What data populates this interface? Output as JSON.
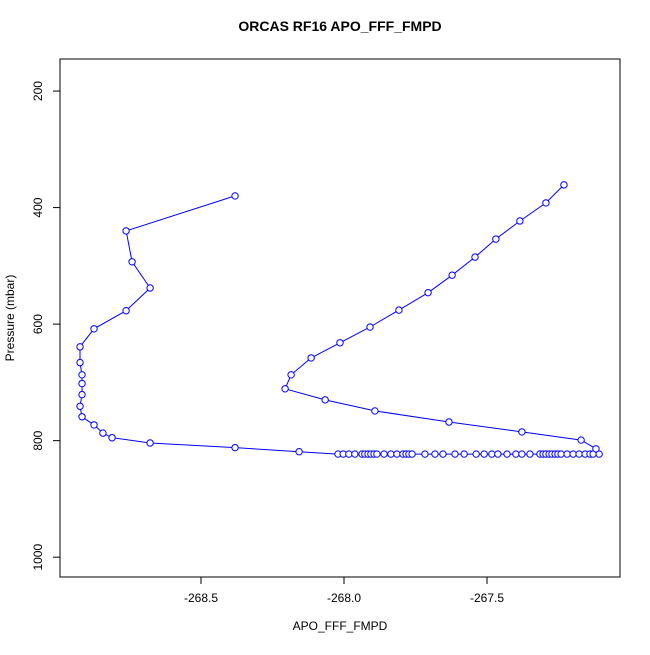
{
  "chart_data": {
    "type": "line",
    "title": "ORCAS RF16 APO_FFF_FMPD",
    "x_label": "APO_FFF_FMPD",
    "y_label": "Pressure (mbar)",
    "color": "#0000ff",
    "markers": true,
    "x": [
      -268.381,
      -268.762,
      -268.741,
      -268.678,
      -268.762,
      -268.874,
      -268.923,
      -268.923,
      -268.916,
      -268.916,
      -268.916,
      -268.923,
      -268.916,
      -268.874,
      -268.843,
      -268.811,
      -268.678,
      -268.381,
      -268.157,
      -268.021,
      -268.003,
      -267.983,
      -267.962,
      -267.937,
      -267.927,
      -267.916,
      -267.906,
      -267.895,
      -267.885,
      -267.86,
      -267.836,
      -267.815,
      -267.794,
      -267.783,
      -267.773,
      -267.762,
      -267.717,
      -267.682,
      -267.654,
      -267.612,
      -267.58,
      -267.538,
      -267.51,
      -267.483,
      -267.462,
      -267.43,
      -267.399,
      -267.378,
      -267.35,
      -267.315,
      -267.304,
      -267.294,
      -267.283,
      -267.273,
      -267.262,
      -267.252,
      -267.241,
      -267.22,
      -267.199,
      -267.178,
      -267.157,
      -267.14,
      -267.129,
      -267.108,
      -267.119,
      -267.171,
      -267.378,
      -267.633,
      -267.892,
      -268.066,
      -268.206,
      -268.185,
      -268.115,
      -268.014,
      -267.909,
      -267.808,
      -267.706,
      -267.622,
      -267.542,
      -267.469,
      -267.385,
      -267.294,
      -267.231
    ],
    "values": [
      380,
      440,
      493,
      538,
      577,
      608,
      639,
      666,
      687,
      702,
      721,
      741,
      759,
      773,
      787,
      795,
      804,
      812,
      819,
      823,
      823,
      823,
      823,
      823,
      823,
      823,
      823,
      823,
      823,
      823,
      823,
      823,
      823,
      823,
      823,
      823,
      823,
      823,
      823,
      823,
      823,
      823,
      823,
      823,
      823,
      823,
      823,
      823,
      823,
      823,
      823,
      823,
      823,
      823,
      823,
      823,
      823,
      823,
      823,
      823,
      823,
      823,
      823,
      823,
      814,
      799,
      785,
      768,
      749,
      730,
      711,
      687,
      658,
      632,
      605,
      576,
      546,
      516,
      485,
      454,
      423,
      392,
      361
    ],
    "xlim": [
      -268.993,
      -267.035
    ],
    "xticks": [
      -268.5,
      {
        "value": -268,
        "label": "-268.0"
      },
      -267.5
    ],
    "ylim": [
      1034,
      145
    ],
    "yticks": [
      200,
      400,
      600,
      800,
      1000
    ]
  }
}
